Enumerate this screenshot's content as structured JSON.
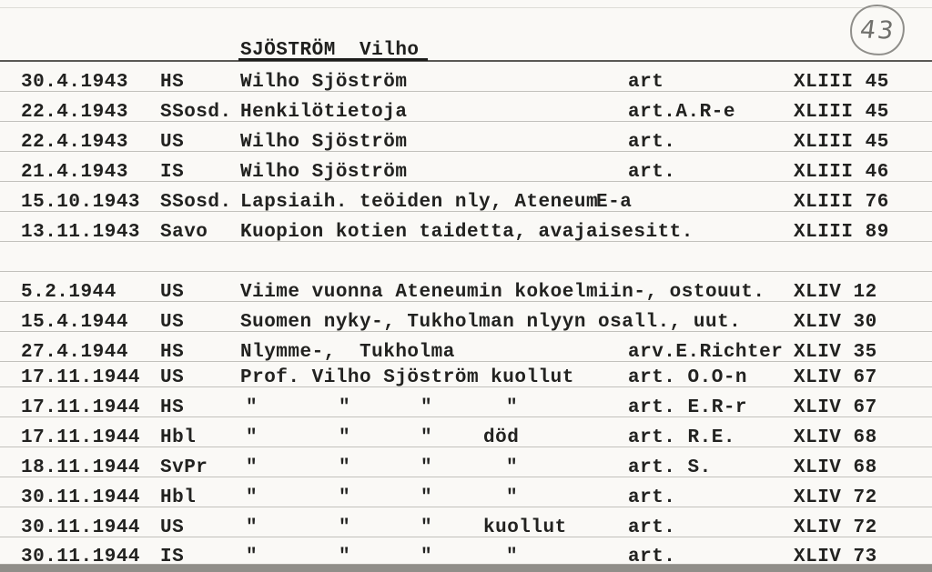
{
  "header": {
    "title": "SJÖSTRÖM  Vilho",
    "page_number": "43"
  },
  "rows": [
    {
      "date": "30.4.1943",
      "source": "HS",
      "title": "Wilho Sjöström",
      "note": "art",
      "ref": "XLIII 45"
    },
    {
      "date": "22.4.1943",
      "source": "SSosd.",
      "title": "Henkilötietoja",
      "note": "art.A.R-e",
      "ref": "XLIII 45"
    },
    {
      "date": "22.4.1943",
      "source": "US",
      "title": "Wilho Sjöström",
      "note": "art.",
      "ref": "XLIII 45"
    },
    {
      "date": "21.4.1943",
      "source": "IS",
      "title": "Wilho Sjöström",
      "note": "art.",
      "ref": "XLIII 46"
    },
    {
      "date": "15.10.1943",
      "source": "SSosd.",
      "title": "Lapsiaih. teöiden nly, Ateneum",
      "note": "E-a",
      "ref": "XLIII 76"
    },
    {
      "date": "13.11.1943",
      "source": "Savo",
      "title": "Kuopion kotien taidetta, avajaisesitt.",
      "note": "",
      "ref": "XLIII 89"
    },
    {
      "date": "5.2.1944",
      "source": "US",
      "title": "Viime vuonna Ateneumin kokoelmiin-, ostouut.",
      "note": "",
      "ref": "XLIV 12"
    },
    {
      "date": "15.4.1944",
      "source": "US",
      "title": "Suomen nyky-, Tukholman nlyyn osall., uut.",
      "note": "",
      "ref": "XLIV 30"
    },
    {
      "date": "27.4.1944",
      "source": "HS",
      "title": "Nlymme-,  Tukholma",
      "note": "arv.E.Richter",
      "ref": "XLIV 35"
    },
    {
      "date": "17.11.1944",
      "source": "US",
      "title": "Prof. Vilho Sjöström kuollut",
      "note": "art. O.O-n",
      "ref": "XLIV 67"
    },
    {
      "date": "17.11.1944",
      "source": "HS",
      "dittos": [
        "\"",
        "\"",
        "\"",
        "\""
      ],
      "note": "art. E.R-r",
      "ref": "XLIV 67"
    },
    {
      "date": "17.11.1944",
      "source": "Hbl",
      "dittos": [
        "\"",
        "\"",
        "\"",
        "död"
      ],
      "note": "art. R.E.",
      "ref": "XLIV 68"
    },
    {
      "date": "18.11.1944",
      "source": "SvPr",
      "dittos": [
        "\"",
        "\"",
        "\"",
        "\""
      ],
      "note": "art. S.",
      "ref": "XLIV 68"
    },
    {
      "date": "30.11.1944",
      "source": "Hbl",
      "dittos": [
        "\"",
        "\"",
        "\"",
        "\""
      ],
      "note": "art.",
      "ref": "XLIV 72"
    },
    {
      "date": "30.11.1944",
      "source": "US",
      "dittos": [
        "\"",
        "\"",
        "\"",
        "kuollut"
      ],
      "note": "art.",
      "ref": "XLIV 72"
    },
    {
      "date": "30.11.1944",
      "source": "IS",
      "dittos": [
        "\"",
        "\"",
        "\"",
        "\""
      ],
      "note": "art.",
      "ref": "XLIV 73"
    }
  ]
}
